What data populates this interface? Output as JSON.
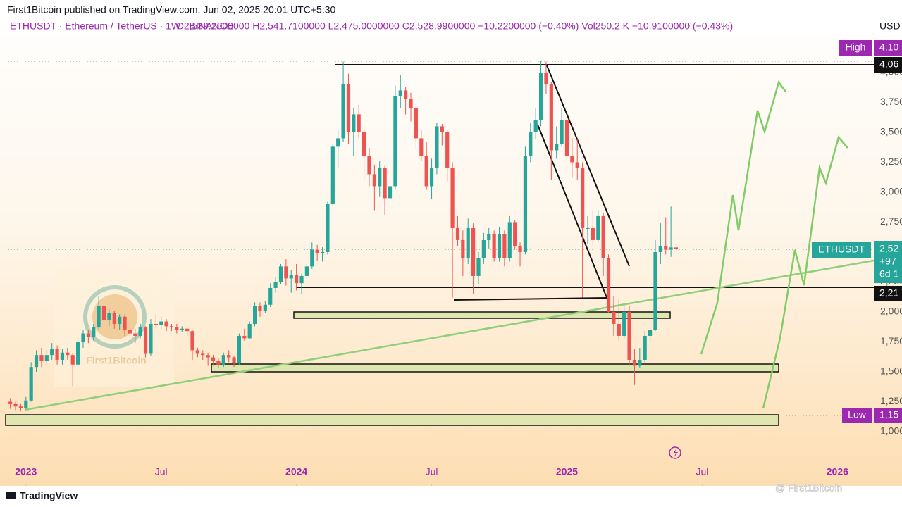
{
  "header": {
    "publisher": "First1Bitcoin published on TradingView.com, Jun 02, 2025 20:01 UTC+5:30",
    "symbol": "ETHUSDT · Ethereum / TetherUS · 1W · BINANCE",
    "ohlc": "O2,539.2000000  H2,541.7100000  L2,475.0000000  C2,528.9900000  −10.2200000 (−0.40%)  Vol250.2 K  −10.9100000 (−0.43%)"
  },
  "chart_data": {
    "type": "candlestick",
    "axis_unit": "USDT",
    "up_color": "#26a69a",
    "down_color": "#ef5350",
    "ylim": [
      547,
      4323
    ],
    "yticks": [
      {
        "value": 1000,
        "label": "1,000"
      },
      {
        "value": 1250,
        "label": "1,250"
      },
      {
        "value": 1500,
        "label": "1,500"
      },
      {
        "value": 1750,
        "label": "1,750"
      },
      {
        "value": 2000,
        "label": "2,000"
      },
      {
        "value": 2250,
        "label": "2,250"
      },
      {
        "value": 2500,
        "label": "2,500"
      },
      {
        "value": 2750,
        "label": "2,750"
      },
      {
        "value": 3000,
        "label": "3,000"
      },
      {
        "value": 3250,
        "label": "3,250"
      },
      {
        "value": 3500,
        "label": "3,500"
      },
      {
        "value": 3750,
        "label": "3,750"
      },
      {
        "value": 4000,
        "label": "4,000"
      }
    ],
    "xlim": [
      -0.9,
      166
    ],
    "xticks": [
      {
        "value": 3,
        "label": "2023"
      },
      {
        "value": 29,
        "label": "Jul"
      },
      {
        "value": 55,
        "label": "2024"
      },
      {
        "value": 81,
        "label": "Jul"
      },
      {
        "value": 107,
        "label": "2025"
      },
      {
        "value": 133,
        "label": "Jul"
      },
      {
        "value": 159,
        "label": "2026"
      }
    ],
    "candles": [
      [
        1250,
        1280,
        1190,
        1230
      ],
      [
        1230,
        1250,
        1180,
        1210
      ],
      [
        1210,
        1230,
        1170,
        1200
      ],
      [
        1200,
        1290,
        1190,
        1260
      ],
      [
        1260,
        1580,
        1250,
        1540
      ],
      [
        1540,
        1680,
        1500,
        1640
      ],
      [
        1640,
        1700,
        1540,
        1590
      ],
      [
        1590,
        1680,
        1560,
        1640
      ],
      [
        1640,
        1740,
        1600,
        1690
      ],
      [
        1690,
        1720,
        1560,
        1600
      ],
      [
        1600,
        1690,
        1560,
        1660
      ],
      [
        1660,
        1700,
        1600,
        1640
      ],
      [
        1640,
        1660,
        1380,
        1560
      ],
      [
        1560,
        1790,
        1540,
        1750
      ],
      [
        1750,
        1850,
        1700,
        1820
      ],
      [
        1820,
        1850,
        1740,
        1790
      ],
      [
        1790,
        1900,
        1760,
        1870
      ],
      [
        1870,
        2130,
        1850,
        2050
      ],
      [
        2050,
        2100,
        1900,
        1930
      ],
      [
        1930,
        2020,
        1880,
        1990
      ],
      [
        1990,
        2010,
        1860,
        1900
      ],
      [
        1900,
        1980,
        1850,
        1960
      ],
      [
        1960,
        1980,
        1800,
        1850
      ],
      [
        1850,
        1880,
        1780,
        1820
      ],
      [
        1820,
        1860,
        1740,
        1800
      ],
      [
        1800,
        1900,
        1780,
        1870
      ],
      [
        1870,
        1880,
        1620,
        1650
      ],
      [
        1650,
        1940,
        1630,
        1900
      ],
      [
        1900,
        1980,
        1860,
        1890
      ],
      [
        1890,
        1960,
        1850,
        1920
      ],
      [
        1920,
        1940,
        1840,
        1880
      ],
      [
        1880,
        1900,
        1840,
        1870
      ],
      [
        1870,
        1900,
        1820,
        1850
      ],
      [
        1850,
        1880,
        1830,
        1860
      ],
      [
        1860,
        1880,
        1800,
        1840
      ],
      [
        1840,
        1850,
        1600,
        1680
      ],
      [
        1680,
        1700,
        1620,
        1650
      ],
      [
        1650,
        1680,
        1600,
        1640
      ],
      [
        1640,
        1660,
        1550,
        1620
      ],
      [
        1620,
        1640,
        1550,
        1590
      ],
      [
        1590,
        1610,
        1530,
        1560
      ],
      [
        1560,
        1660,
        1540,
        1640
      ],
      [
        1640,
        1680,
        1580,
        1620
      ],
      [
        1620,
        1630,
        1540,
        1570
      ],
      [
        1570,
        1820,
        1560,
        1800
      ],
      [
        1800,
        1860,
        1760,
        1780
      ],
      [
        1780,
        1920,
        1770,
        1900
      ],
      [
        1900,
        2080,
        1880,
        2050
      ],
      [
        2050,
        2080,
        1960,
        2010
      ],
      [
        2010,
        2090,
        1990,
        2060
      ],
      [
        2060,
        2240,
        2040,
        2200
      ],
      [
        2200,
        2290,
        2160,
        2250
      ],
      [
        2250,
        2400,
        2230,
        2380
      ],
      [
        2380,
        2440,
        2220,
        2280
      ],
      [
        2280,
        2350,
        2160,
        2310
      ],
      [
        2310,
        2400,
        2180,
        2240
      ],
      [
        2240,
        2320,
        2150,
        2300
      ],
      [
        2300,
        2400,
        2280,
        2380
      ],
      [
        2380,
        2580,
        2360,
        2520
      ],
      [
        2520,
        2560,
        2430,
        2490
      ],
      [
        2490,
        2540,
        2420,
        2500
      ],
      [
        2500,
        2920,
        2480,
        2900
      ],
      [
        2900,
        3400,
        2880,
        3380
      ],
      [
        3380,
        3520,
        3200,
        3450
      ],
      [
        3450,
        4090,
        3420,
        3900
      ],
      [
        3900,
        3990,
        3400,
        3500
      ],
      [
        3500,
        3700,
        3300,
        3650
      ],
      [
        3650,
        3730,
        3450,
        3500
      ],
      [
        3500,
        3560,
        3100,
        3300
      ],
      [
        3300,
        3370,
        3050,
        3150
      ],
      [
        3150,
        3230,
        2850,
        3050
      ],
      [
        3050,
        3260,
        2960,
        3200
      ],
      [
        3200,
        3220,
        2810,
        2950
      ],
      [
        2950,
        3100,
        2880,
        3050
      ],
      [
        3050,
        3890,
        3030,
        3800
      ],
      [
        3800,
        3980,
        3700,
        3850
      ],
      [
        3850,
        3880,
        3650,
        3780
      ],
      [
        3780,
        3830,
        3590,
        3700
      ],
      [
        3700,
        3740,
        3360,
        3450
      ],
      [
        3450,
        3520,
        3260,
        3300
      ],
      [
        3300,
        3420,
        3020,
        3050
      ],
      [
        3050,
        3280,
        2940,
        3200
      ],
      [
        3200,
        3580,
        3150,
        3550
      ],
      [
        3550,
        3570,
        3390,
        3500
      ],
      [
        3500,
        3520,
        3090,
        3200
      ],
      [
        3200,
        3250,
        2120,
        2700
      ],
      [
        2700,
        2800,
        2550,
        2600
      ],
      [
        2600,
        2680,
        2300,
        2450
      ],
      [
        2450,
        2780,
        2400,
        2700
      ],
      [
        2700,
        2740,
        2150,
        2300
      ],
      [
        2300,
        2500,
        2230,
        2450
      ],
      [
        2450,
        2660,
        2400,
        2600
      ],
      [
        2600,
        2700,
        2530,
        2650
      ],
      [
        2650,
        2680,
        2420,
        2450
      ],
      [
        2450,
        2710,
        2420,
        2650
      ],
      [
        2650,
        2680,
        2380,
        2450
      ],
      [
        2450,
        2800,
        2420,
        2750
      ],
      [
        2750,
        2770,
        2520,
        2550
      ],
      [
        2550,
        2580,
        2380,
        2500
      ],
      [
        2500,
        3380,
        2480,
        3300
      ],
      [
        3300,
        3580,
        3250,
        3500
      ],
      [
        3500,
        3700,
        3440,
        3600
      ],
      [
        3600,
        4100,
        3550,
        4000
      ],
      [
        4000,
        4090,
        3820,
        3900
      ],
      [
        3900,
        3920,
        3100,
        3350
      ],
      [
        3350,
        3550,
        3280,
        3400
      ],
      [
        3400,
        3700,
        3380,
        3600
      ],
      [
        3600,
        3630,
        3150,
        3300
      ],
      [
        3300,
        3450,
        3120,
        3250
      ],
      [
        3250,
        3440,
        3100,
        3200
      ],
      [
        3200,
        3250,
        2120,
        2700
      ],
      [
        2700,
        2800,
        2570,
        2700
      ],
      [
        2700,
        2850,
        2550,
        2600
      ],
      [
        2600,
        2850,
        2580,
        2800
      ],
      [
        2800,
        2830,
        2300,
        2450
      ],
      [
        2450,
        2480,
        1990,
        2000
      ],
      [
        2000,
        2130,
        1800,
        1900
      ],
      [
        1900,
        2100,
        1760,
        1800
      ],
      [
        1800,
        2050,
        1780,
        2000
      ],
      [
        2000,
        2050,
        1550,
        1600
      ],
      [
        1600,
        1690,
        1390,
        1550
      ],
      [
        1550,
        1700,
        1530,
        1600
      ],
      [
        1600,
        1840,
        1560,
        1800
      ],
      [
        1800,
        1870,
        1750,
        1850
      ],
      [
        1850,
        2600,
        1840,
        2500
      ],
      [
        2500,
        2740,
        2400,
        2550
      ],
      [
        2550,
        2790,
        2480,
        2520
      ],
      [
        2520,
        2880,
        2460,
        2539
      ],
      [
        2539,
        2541.71,
        2475,
        2528.99
      ]
    ],
    "price_tags": {
      "high_label": "High",
      "high_price": "4,10",
      "top_line": "4,06",
      "symbol": "ETHUSDT",
      "last_price": "2,52",
      "last_change": "+97",
      "countdown": "6d 1",
      "support": "2,21",
      "low_label": "Low",
      "low_price": "1,15"
    }
  },
  "watermark": {
    "logo_text": "First1Bitcoin",
    "footer": "@ First1Bitcoin",
    "brand": "TradingView"
  }
}
